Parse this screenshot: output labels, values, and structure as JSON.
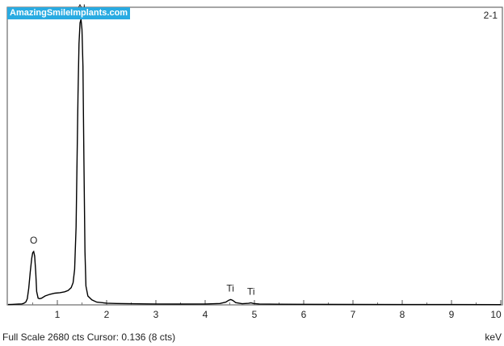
{
  "watermark": "AmazingSmileImplants.com",
  "spectrum_id": "2-1",
  "status_bar": {
    "text": "Full Scale 2680 cts Cursor: 0.136  (8 cts)",
    "unit": "keV"
  },
  "colors": {
    "watermark_bg": "#29abe2",
    "line": "#000000",
    "frame": "#6a6a6a"
  },
  "chart_data": {
    "type": "line",
    "title": "",
    "xlabel": "keV",
    "ylabel": "",
    "xlim": [
      0,
      10
    ],
    "ylim": [
      0,
      2680
    ],
    "x_ticks": [
      1,
      2,
      3,
      4,
      5,
      6,
      7,
      8,
      9,
      10
    ],
    "peak_labels": [
      {
        "text": "O",
        "x": 0.52,
        "y": 2680,
        "anchor": "O"
      },
      {
        "text": "Al",
        "x": 1.48,
        "y": 2680,
        "anchor": "Al"
      },
      {
        "text": "Ti",
        "x": 4.51,
        "y": 2680,
        "anchor": "Ti1"
      },
      {
        "text": "Ti",
        "x": 4.93,
        "y": 2680,
        "anchor": "Ti2"
      }
    ],
    "series": [
      {
        "x": [
          0.0,
          0.08,
          0.15,
          0.22,
          0.28,
          0.32,
          0.36,
          0.39,
          0.42,
          0.45,
          0.48,
          0.5,
          0.52,
          0.54,
          0.56,
          0.58,
          0.61,
          0.64,
          0.68,
          0.75,
          0.85,
          0.95,
          1.05,
          1.15,
          1.22,
          1.28,
          1.32,
          1.35,
          1.38,
          1.4,
          1.42,
          1.44,
          1.46,
          1.48,
          1.5,
          1.52,
          1.54,
          1.56,
          1.58,
          1.62,
          1.7,
          1.8,
          2.0,
          2.2,
          2.5,
          3.0,
          3.5,
          4.0,
          4.3,
          4.42,
          4.48,
          4.52,
          4.56,
          4.62,
          4.75,
          4.88,
          4.93,
          4.98,
          5.1,
          5.5,
          6.0,
          7.0,
          8.0,
          9.0,
          10.0
        ],
        "y": [
          3,
          4,
          6,
          7,
          9,
          14,
          26,
          55,
          150,
          300,
          420,
          470,
          480,
          440,
          300,
          120,
          60,
          55,
          60,
          80,
          95,
          105,
          110,
          118,
          130,
          155,
          200,
          320,
          700,
          1300,
          1900,
          2350,
          2540,
          2570,
          2480,
          2150,
          1300,
          480,
          170,
          80,
          45,
          25,
          15,
          12,
          10,
          8,
          7,
          8,
          12,
          25,
          42,
          48,
          40,
          20,
          10,
          14,
          18,
          12,
          8,
          6,
          5,
          4,
          3,
          3,
          2
        ]
      }
    ]
  }
}
